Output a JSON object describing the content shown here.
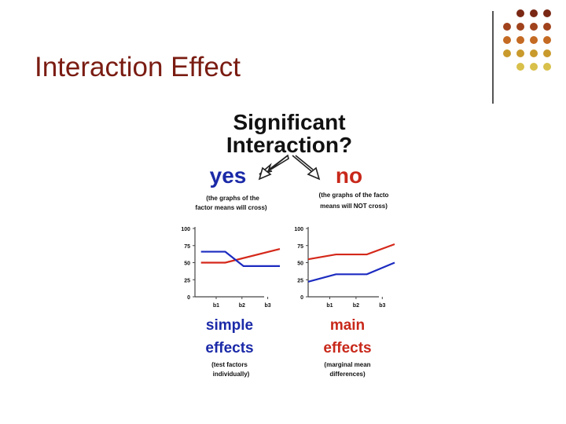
{
  "slide": {
    "title": "Interaction Effect"
  },
  "decoration": {
    "dot_colors": [
      "#7a2814",
      "#a0421c",
      "#c46a22",
      "#c99a2c",
      "#d8c04a"
    ]
  },
  "figure": {
    "heading_line1": "Significant",
    "heading_line2": "Interaction?",
    "yes": {
      "label": "yes",
      "note_line1": "(the graphs of the",
      "note_line2": "factor means will cross)",
      "bottom_line1": "simple",
      "bottom_line2": "effects",
      "bottom_note_line1": "(test factors",
      "bottom_note_line2": "individually)"
    },
    "no": {
      "label": "no",
      "note_line1": "(the graphs of the facto",
      "note_line2": "means will NOT cross)",
      "bottom_line1": "main",
      "bottom_line2": "effects",
      "bottom_note_line1": "(marginal mean",
      "bottom_note_line2": "differences)"
    },
    "colors": {
      "heading": "#111111",
      "yes": "#1b2aa8",
      "no": "#c8281a",
      "series_red": "#d4281a",
      "series_blue": "#1c2bc0"
    }
  },
  "chart_data": [
    {
      "type": "line",
      "x": [
        "b1",
        "b2",
        "b3"
      ],
      "ylim": [
        0,
        100
      ],
      "yticks": [
        "100",
        "75",
        "50",
        "25",
        "0"
      ],
      "x_positions": [
        0.1,
        1.0,
        1.9,
        2.8
      ],
      "series": [
        {
          "color": "#d4281a",
          "points": [
            [
              0.2,
              50
            ],
            [
              1.0,
              50
            ],
            [
              2.8,
              70
            ]
          ]
        },
        {
          "color": "#1c2bc0",
          "points": [
            [
              0.2,
              66
            ],
            [
              1.0,
              66
            ],
            [
              1.6,
              45
            ],
            [
              2.8,
              45
            ]
          ]
        }
      ]
    },
    {
      "type": "line",
      "x": [
        "b1",
        "b2",
        "b3"
      ],
      "ylim": [
        0,
        100
      ],
      "yticks": [
        "100",
        "75",
        "50",
        "25",
        "0"
      ],
      "series": [
        {
          "color": "#d4281a",
          "points": [
            [
              0.0,
              55
            ],
            [
              0.9,
              62
            ],
            [
              1.9,
              62
            ],
            [
              2.8,
              77
            ]
          ]
        },
        {
          "color": "#1c2bc0",
          "points": [
            [
              0.0,
              22
            ],
            [
              0.9,
              33
            ],
            [
              1.9,
              33
            ],
            [
              2.8,
              50
            ]
          ]
        }
      ]
    }
  ]
}
